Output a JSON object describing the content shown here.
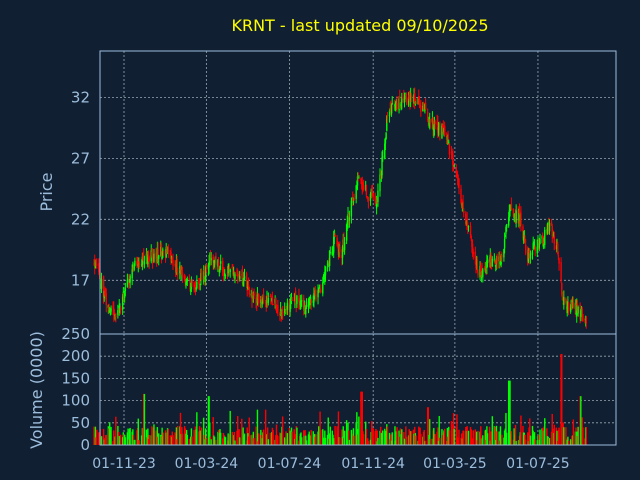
{
  "chart_data": {
    "type": "candlestick",
    "title": "KRNT - last updated 09/10/2025",
    "colors": {
      "background": "#102032",
      "title": "#ffff00",
      "axis_text": "#9dbddc",
      "frame": "#9dbddc",
      "grid": "#c8d2dc",
      "up": "#00ff00",
      "down": "#ff0000"
    },
    "x_ticks": [
      "01-11-23",
      "01-03-24",
      "01-07-24",
      "01-11-24",
      "01-03-25",
      "01-07-25"
    ],
    "price_panel": {
      "ylabel": "Price",
      "ylim": [
        12.6,
        35.8
      ],
      "yticks": [
        17,
        22,
        27,
        32
      ],
      "grid": true
    },
    "volume_panel": {
      "ylabel": "Volume (0000)",
      "ylim": [
        0,
        250
      ],
      "yticks": [
        0,
        50,
        100,
        150,
        200,
        250
      ],
      "grid": true
    },
    "price_anchors": [
      [
        "2023-09-18",
        18.6
      ],
      [
        "2023-10-05",
        15.5
      ],
      [
        "2023-10-20",
        13.8
      ],
      [
        "2023-11-01",
        15.8
      ],
      [
        "2023-11-20",
        18.5
      ],
      [
        "2023-12-15",
        19.0
      ],
      [
        "2024-01-01",
        19.5
      ],
      [
        "2024-01-25",
        17.5
      ],
      [
        "2024-02-10",
        16.2
      ],
      [
        "2024-03-01",
        17.8
      ],
      [
        "2024-03-08",
        19.2
      ],
      [
        "2024-03-25",
        17.8
      ],
      [
        "2024-04-20",
        17.5
      ],
      [
        "2024-05-10",
        15.5
      ],
      [
        "2024-06-01",
        15.4
      ],
      [
        "2024-06-20",
        14.4
      ],
      [
        "2024-07-10",
        15.5
      ],
      [
        "2024-07-20",
        14.8
      ],
      [
        "2024-08-01",
        15.2
      ],
      [
        "2024-08-15",
        16.0
      ],
      [
        "2024-08-25",
        18.0
      ],
      [
        "2024-09-05",
        20.5
      ],
      [
        "2024-09-15",
        19.0
      ],
      [
        "2024-09-25",
        22.0
      ],
      [
        "2024-10-10",
        25.5
      ],
      [
        "2024-10-25",
        24.0
      ],
      [
        "2024-11-07",
        23.5
      ],
      [
        "2024-11-22",
        30.5
      ],
      [
        "2024-12-05",
        31.5
      ],
      [
        "2024-12-25",
        32.0
      ],
      [
        "2025-01-15",
        31.0
      ],
      [
        "2025-01-30",
        29.5
      ],
      [
        "2025-02-15",
        29.0
      ],
      [
        "2025-02-28",
        26.5
      ],
      [
        "2025-03-15",
        22.5
      ],
      [
        "2025-03-25",
        20.0
      ],
      [
        "2025-04-05",
        17.5
      ],
      [
        "2025-04-20",
        18.5
      ],
      [
        "2025-05-10",
        19.0
      ],
      [
        "2025-05-20",
        22.8
      ],
      [
        "2025-06-05",
        22.0
      ],
      [
        "2025-06-15",
        19.0
      ],
      [
        "2025-07-01",
        20.0
      ],
      [
        "2025-07-10",
        20.5
      ],
      [
        "2025-07-20",
        21.5
      ],
      [
        "2025-07-30",
        19.5
      ],
      [
        "2025-08-06",
        15.2
      ],
      [
        "2025-08-25",
        14.8
      ],
      [
        "2025-09-10",
        13.5
      ]
    ],
    "volume_spikes": [
      [
        "2023-12-01",
        115
      ],
      [
        "2024-03-04",
        110
      ],
      [
        "2024-10-15",
        120
      ],
      [
        "2025-01-20",
        85
      ],
      [
        "2025-05-20",
        145
      ],
      [
        "2025-08-04",
        205
      ],
      [
        "2025-09-01",
        110
      ]
    ]
  }
}
